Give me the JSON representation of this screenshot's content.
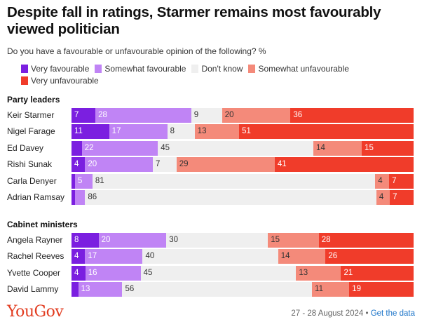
{
  "title": "Despite fall in ratings, Starmer remains most favourably viewed politician",
  "subtitle": "Do you have a favourable or unfavourable opinion of the following? %",
  "legend": [
    {
      "label": "Very favourable",
      "color": "#7b1fe0"
    },
    {
      "label": "Somewhat favourable",
      "color": "#c084f5"
    },
    {
      "label": "Don't know",
      "color": "#efefef"
    },
    {
      "label": "Somewhat unfavourable",
      "color": "#f48a7a"
    },
    {
      "label": "Very unfavourable",
      "color": "#f03c2a"
    }
  ],
  "chart_data": {
    "type": "bar",
    "stacked": true,
    "orientation": "horizontal",
    "series_names": [
      "Very favourable",
      "Somewhat favourable",
      "Don't know",
      "Somewhat unfavourable",
      "Very unfavourable"
    ],
    "groups": [
      {
        "name": "Party leaders",
        "rows": [
          {
            "label": "Keir Starmer",
            "values": [
              7,
              28,
              9,
              20,
              36
            ],
            "labels": [
              "7",
              "28",
              "9",
              "20",
              "36"
            ]
          },
          {
            "label": "Nigel Farage",
            "values": [
              11,
              17,
              8,
              13,
              51
            ],
            "labels": [
              "11",
              "17",
              "8",
              "13",
              "51"
            ]
          },
          {
            "label": "Ed Davey",
            "values": [
              3,
              22,
              45,
              14,
              15
            ],
            "labels": [
              "",
              "22",
              "45",
              "14",
              "15"
            ]
          },
          {
            "label": "Rishi Sunak",
            "values": [
              4,
              20,
              7,
              29,
              41
            ],
            "labels": [
              "4",
              "20",
              "7",
              "29",
              "41"
            ]
          },
          {
            "label": "Carla Denyer",
            "values": [
              1,
              5,
              81,
              4,
              7
            ],
            "labels": [
              "",
              "5",
              "81",
              "4",
              "7"
            ]
          },
          {
            "label": "Adrian Ramsay",
            "values": [
              1,
              3,
              86,
              4,
              7
            ],
            "labels": [
              "",
              "",
              "86",
              "4",
              "7"
            ]
          }
        ]
      },
      {
        "name": "Cabinet ministers",
        "rows": [
          {
            "label": "Angela Rayner",
            "values": [
              8,
              20,
              30,
              15,
              28
            ],
            "labels": [
              "8",
              "20",
              "30",
              "15",
              "28"
            ]
          },
          {
            "label": "Rachel Reeves",
            "values": [
              4,
              17,
              40,
              14,
              26
            ],
            "labels": [
              "4",
              "17",
              "40",
              "14",
              "26"
            ]
          },
          {
            "label": "Yvette Cooper",
            "values": [
              4,
              16,
              45,
              13,
              21
            ],
            "labels": [
              "4",
              "16",
              "45",
              "13",
              "21"
            ]
          },
          {
            "label": "David Lammy",
            "values": [
              2,
              13,
              56,
              11,
              19
            ],
            "labels": [
              "",
              "13",
              "56",
              "11",
              "19"
            ]
          }
        ]
      }
    ]
  },
  "footer": {
    "logo": "YouGov",
    "date": "27 - 28 August 2024",
    "separator": " • ",
    "link": "Get the data"
  }
}
